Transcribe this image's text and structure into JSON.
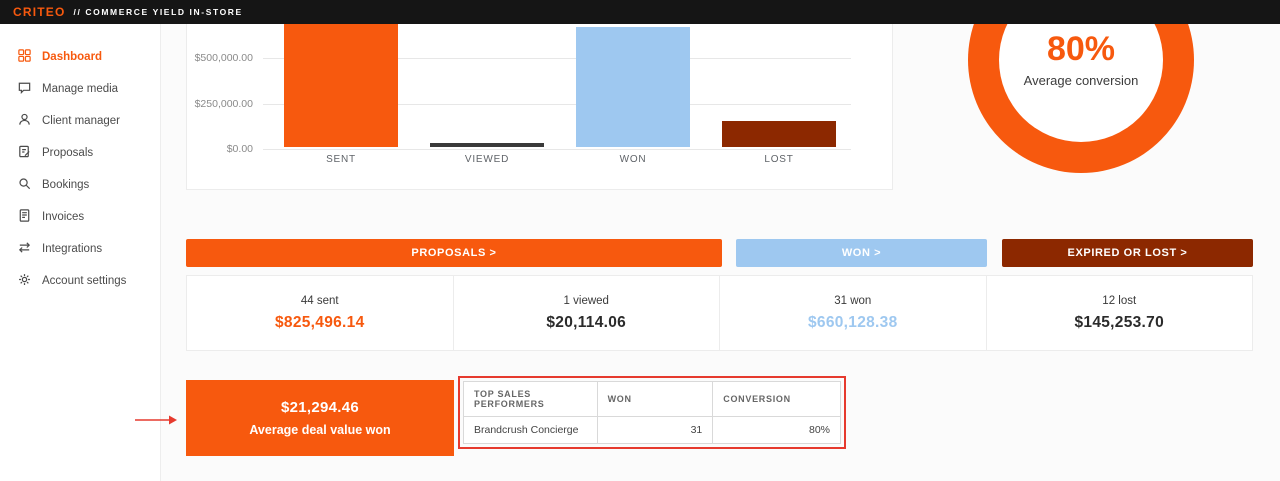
{
  "header": {
    "brand": "CRITEO",
    "subtitle": "// COMMERCE YIELD IN-STORE"
  },
  "sidebar": {
    "items": [
      {
        "label": "Dashboard",
        "icon": "dashboard-icon",
        "active": true
      },
      {
        "label": "Manage media",
        "icon": "chat-icon",
        "active": false
      },
      {
        "label": "Client manager",
        "icon": "person-icon",
        "active": false
      },
      {
        "label": "Proposals",
        "icon": "proposal-icon",
        "active": false
      },
      {
        "label": "Bookings",
        "icon": "search-icon",
        "active": false
      },
      {
        "label": "Invoices",
        "icon": "invoice-icon",
        "active": false
      },
      {
        "label": "Integrations",
        "icon": "integrations-icon",
        "active": false
      },
      {
        "label": "Account settings",
        "icon": "gear-icon",
        "active": false
      }
    ]
  },
  "chart_data": {
    "type": "bar",
    "categories": [
      "SENT",
      "VIEWED",
      "WON",
      "LOST"
    ],
    "values": [
      825496.14,
      20114.06,
      660128.38,
      145253.7
    ],
    "colors": [
      "#f7590e",
      "#3a3a3a",
      "#9ec8f0",
      "#8c2800"
    ],
    "title": "",
    "xlabel": "",
    "ylabel": "",
    "ytick_labels": [
      "$500,000.00",
      "$250,000.00",
      "$0.00"
    ],
    "ylim": [
      0,
      550000
    ],
    "grid": true,
    "legend": false,
    "note": "top of SENT and WON bars clipped by viewport"
  },
  "donut": {
    "type": "donut",
    "value": 80,
    "percent_label": "80%",
    "label": "Average conversion",
    "color": "#f7590e",
    "track_color": "#ededed"
  },
  "buttons": [
    {
      "label": "PROPOSALS >",
      "color": "#f7590e"
    },
    {
      "label": "WON >",
      "color": "#9ec8f0"
    },
    {
      "label": "EXPIRED OR LOST >",
      "color": "#8c2800"
    }
  ],
  "stats": [
    {
      "count": "44 sent",
      "amount": "$825,496.14",
      "amount_color": "#f7590e"
    },
    {
      "count": "1 viewed",
      "amount": "$20,114.06",
      "amount_color": "#2b2b2b"
    },
    {
      "count": "31 won",
      "amount": "$660,128.38",
      "amount_color": "#9ec8f0"
    },
    {
      "count": "12 lost",
      "amount": "$145,253.70",
      "amount_color": "#2b2b2b"
    }
  ],
  "deal_card": {
    "amount": "$21,294.46",
    "label": "Average deal value won",
    "color": "#f7590e"
  },
  "performers_table": {
    "headers": [
      "TOP SALES PERFORMERS",
      "WON",
      "CONVERSION"
    ],
    "rows": [
      {
        "name": "Brandcrush Concierge",
        "won": "31",
        "conversion": "80%"
      }
    ]
  },
  "annotations": {
    "arrow_color": "#e63a2e",
    "highlight_border_color": "#e63a2e"
  }
}
